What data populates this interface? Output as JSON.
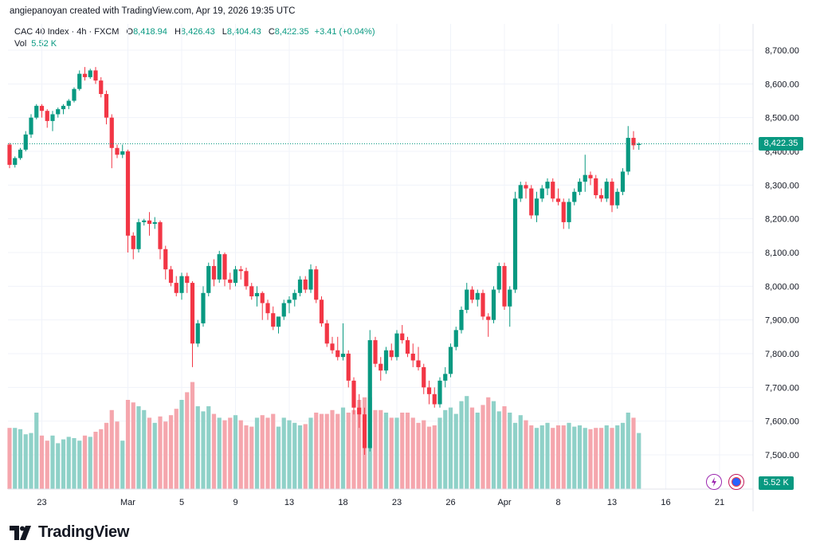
{
  "header": {
    "attribution": "angiepanoyan created with TradingView.com, Apr 19, 2026 19:35 UTC"
  },
  "legend": {
    "symbol": "CAC 40 Index · 4h · FXCM",
    "open_label": "O",
    "open": "8,418.94",
    "high_label": "H",
    "high": "8,426.43",
    "low_label": "L",
    "low": "8,404.43",
    "close_label": "C",
    "close": "8,422.35",
    "change": "+3.41 (+0.04%)",
    "vol_label": "Vol",
    "vol_value": "5.52 K"
  },
  "price_tag": "8,422.35",
  "vol_tag": "5.52 K",
  "brand": {
    "name": "TradingView"
  },
  "colors": {
    "up": "#089981",
    "down": "#f23645",
    "up_vol": "#8fd1c8",
    "down_vol": "#f5a6ad",
    "grid": "#f0f3fa"
  },
  "icons": {
    "flash": "flash-icon",
    "globe": "globe-icon",
    "logo": "tradingview-logo-icon"
  },
  "chart_data": {
    "type": "candlestick",
    "title": "CAC 40 Index · 4h · FXCM",
    "ylim": [
      7450,
      8750
    ],
    "y_ticks": [
      "8,700.00",
      "8,600.00",
      "8,500.00",
      "8,400.00",
      "8,300.00",
      "8,200.00",
      "8,100.00",
      "8,000.00",
      "7,900.00",
      "7,800.00",
      "7,700.00",
      "7,600.00",
      "7,500.00"
    ],
    "y_tick_values": [
      8700,
      8600,
      8500,
      8400,
      8300,
      8200,
      8100,
      8000,
      7900,
      7800,
      7700,
      7600,
      7500
    ],
    "x_labels": [
      {
        "label": "23",
        "index": 6
      },
      {
        "label": "Mar",
        "index": 22
      },
      {
        "label": "5",
        "index": 32
      },
      {
        "label": "9",
        "index": 42
      },
      {
        "label": "13",
        "index": 52
      },
      {
        "label": "18",
        "index": 62
      },
      {
        "label": "23",
        "index": 72
      },
      {
        "label": "26",
        "index": 82
      },
      {
        "label": "Apr",
        "index": 92
      },
      {
        "label": "8",
        "index": 102
      },
      {
        "label": "13",
        "index": 112
      },
      {
        "label": "16",
        "index": 122
      },
      {
        "label": "21",
        "index": 132
      }
    ],
    "last_price": 8422.35,
    "candles": [
      [
        8420,
        8425,
        8350,
        8360
      ],
      [
        8360,
        8385,
        8352,
        8380
      ],
      [
        8380,
        8410,
        8375,
        8405
      ],
      [
        8405,
        8460,
        8400,
        8450
      ],
      [
        8450,
        8510,
        8440,
        8500
      ],
      [
        8500,
        8540,
        8495,
        8535
      ],
      [
        8535,
        8540,
        8500,
        8520
      ],
      [
        8520,
        8525,
        8470,
        8490
      ],
      [
        8490,
        8520,
        8460,
        8510
      ],
      [
        8510,
        8530,
        8500,
        8525
      ],
      [
        8525,
        8540,
        8510,
        8535
      ],
      [
        8535,
        8555,
        8525,
        8550
      ],
      [
        8550,
        8590,
        8545,
        8585
      ],
      [
        8585,
        8640,
        8580,
        8630
      ],
      [
        8630,
        8650,
        8610,
        8620
      ],
      [
        8620,
        8645,
        8615,
        8640
      ],
      [
        8640,
        8650,
        8600,
        8610
      ],
      [
        8610,
        8620,
        8560,
        8570
      ],
      [
        8570,
        8580,
        8480,
        8500
      ],
      [
        8500,
        8510,
        8350,
        8410
      ],
      [
        8410,
        8420,
        8380,
        8390
      ],
      [
        8390,
        8420,
        8380,
        8400
      ],
      [
        8400,
        8405,
        8100,
        8150
      ],
      [
        8150,
        8160,
        8080,
        8110
      ],
      [
        8110,
        8200,
        8100,
        8190
      ],
      [
        8190,
        8200,
        8180,
        8195
      ],
      [
        8195,
        8220,
        8150,
        8185
      ],
      [
        8185,
        8205,
        8170,
        8190
      ],
      [
        8190,
        8195,
        8080,
        8110
      ],
      [
        8110,
        8120,
        8020,
        8050
      ],
      [
        8050,
        8060,
        8000,
        8010
      ],
      [
        8010,
        8030,
        7970,
        7980
      ],
      [
        7980,
        8040,
        7960,
        8030
      ],
      [
        8030,
        8040,
        7980,
        8010
      ],
      [
        8010,
        8015,
        7760,
        7830
      ],
      [
        7830,
        7900,
        7820,
        7890
      ],
      [
        7890,
        8000,
        7880,
        7980
      ],
      [
        7980,
        8070,
        7970,
        8060
      ],
      [
        8060,
        8080,
        8000,
        8020
      ],
      [
        8020,
        8105,
        8010,
        8095
      ],
      [
        8095,
        8100,
        8000,
        8020
      ],
      [
        8020,
        8040,
        7990,
        8010
      ],
      [
        8010,
        8060,
        8000,
        8050
      ],
      [
        8050,
        8060,
        8020,
        8045
      ],
      [
        8045,
        8055,
        7990,
        8000
      ],
      [
        8000,
        8010,
        7960,
        7970
      ],
      [
        7970,
        8000,
        7940,
        7980
      ],
      [
        7980,
        7985,
        7900,
        7950
      ],
      [
        7950,
        7960,
        7900,
        7920
      ],
      [
        7920,
        7940,
        7870,
        7880
      ],
      [
        7880,
        7900,
        7860,
        7910
      ],
      [
        7910,
        7960,
        7900,
        7950
      ],
      [
        7950,
        7970,
        7920,
        7960
      ],
      [
        7960,
        7990,
        7940,
        7980
      ],
      [
        7980,
        8030,
        7970,
        8020
      ],
      [
        8020,
        8030,
        7980,
        7990
      ],
      [
        7990,
        8065,
        7980,
        8050
      ],
      [
        8050,
        8060,
        7950,
        7960
      ],
      [
        7960,
        7970,
        7880,
        7890
      ],
      [
        7890,
        7900,
        7820,
        7830
      ],
      [
        7830,
        7850,
        7800,
        7810
      ],
      [
        7810,
        7850,
        7780,
        7790
      ],
      [
        7790,
        7890,
        7780,
        7800
      ],
      [
        7800,
        7810,
        7700,
        7720
      ],
      [
        7720,
        7730,
        7620,
        7640
      ],
      [
        7640,
        7680,
        7580,
        7620
      ],
      [
        7620,
        7640,
        7500,
        7520
      ],
      [
        7520,
        7870,
        7510,
        7840
      ],
      [
        7840,
        7850,
        7760,
        7770
      ],
      [
        7770,
        7790,
        7720,
        7750
      ],
      [
        7750,
        7820,
        7740,
        7810
      ],
      [
        7810,
        7830,
        7780,
        7790
      ],
      [
        7790,
        7870,
        7780,
        7860
      ],
      [
        7860,
        7885,
        7830,
        7840
      ],
      [
        7840,
        7850,
        7790,
        7800
      ],
      [
        7800,
        7830,
        7760,
        7780
      ],
      [
        7780,
        7820,
        7750,
        7760
      ],
      [
        7760,
        7770,
        7680,
        7700
      ],
      [
        7700,
        7720,
        7650,
        7680
      ],
      [
        7680,
        7700,
        7640,
        7650
      ],
      [
        7650,
        7730,
        7640,
        7720
      ],
      [
        7720,
        7760,
        7700,
        7740
      ],
      [
        7740,
        7830,
        7730,
        7820
      ],
      [
        7820,
        7880,
        7810,
        7870
      ],
      [
        7870,
        7940,
        7860,
        7930
      ],
      [
        7930,
        8010,
        7920,
        7990
      ],
      [
        7990,
        8000,
        7950,
        7960
      ],
      [
        7960,
        7990,
        7940,
        7980
      ],
      [
        7980,
        7990,
        7900,
        7910
      ],
      [
        7910,
        7920,
        7850,
        7900
      ],
      [
        7900,
        8000,
        7890,
        7990
      ],
      [
        7990,
        8070,
        7980,
        8060
      ],
      [
        8060,
        8070,
        7930,
        7940
      ],
      [
        7940,
        8000,
        7880,
        7990
      ],
      [
        7990,
        8280,
        7980,
        8260
      ],
      [
        8260,
        8310,
        8250,
        8300
      ],
      [
        8300,
        8310,
        8260,
        8290
      ],
      [
        8290,
        8300,
        8200,
        8210
      ],
      [
        8210,
        8280,
        8190,
        8260
      ],
      [
        8260,
        8300,
        8250,
        8290
      ],
      [
        8290,
        8320,
        8270,
        8310
      ],
      [
        8310,
        8320,
        8250,
        8260
      ],
      [
        8260,
        8290,
        8240,
        8250
      ],
      [
        8250,
        8260,
        8170,
        8190
      ],
      [
        8190,
        8260,
        8170,
        8250
      ],
      [
        8250,
        8290,
        8240,
        8280
      ],
      [
        8280,
        8320,
        8270,
        8310
      ],
      [
        8310,
        8390,
        8280,
        8330
      ],
      [
        8330,
        8340,
        8300,
        8320
      ],
      [
        8320,
        8330,
        8260,
        8270
      ],
      [
        8270,
        8290,
        8250,
        8260
      ],
      [
        8260,
        8320,
        8250,
        8310
      ],
      [
        8310,
        8320,
        8220,
        8240
      ],
      [
        8240,
        8290,
        8230,
        8280
      ],
      [
        8280,
        8350,
        8270,
        8340
      ],
      [
        8340,
        8475,
        8330,
        8440
      ],
      [
        8440,
        8460,
        8405,
        8418
      ],
      [
        8418.94,
        8426.43,
        8404.43,
        8422.35
      ]
    ],
    "volumes": [
      480,
      480,
      470,
      430,
      440,
      600,
      420,
      380,
      420,
      360,
      390,
      410,
      400,
      380,
      420,
      410,
      450,
      470,
      520,
      620,
      530,
      380,
      700,
      680,
      650,
      620,
      560,
      520,
      570,
      530,
      580,
      630,
      700,
      760,
      840,
      650,
      610,
      650,
      590,
      560,
      540,
      560,
      580,
      540,
      500,
      490,
      560,
      580,
      560,
      590,
      490,
      560,
      540,
      520,
      500,
      510,
      560,
      600,
      590,
      590,
      620,
      590,
      640,
      600,
      620,
      700,
      720,
      720,
      620,
      620,
      600,
      560,
      560,
      600,
      600,
      560,
      520,
      540,
      490,
      500,
      560,
      620,
      640,
      590,
      690,
      730,
      640,
      600,
      660,
      720,
      690,
      610,
      650,
      600,
      520,
      580,
      540,
      500,
      480,
      500,
      520,
      480,
      500,
      500,
      520,
      490,
      500,
      480,
      470,
      480,
      480,
      500,
      480,
      500,
      520,
      600,
      560,
      440
    ],
    "volume_scale_note": "relative"
  }
}
